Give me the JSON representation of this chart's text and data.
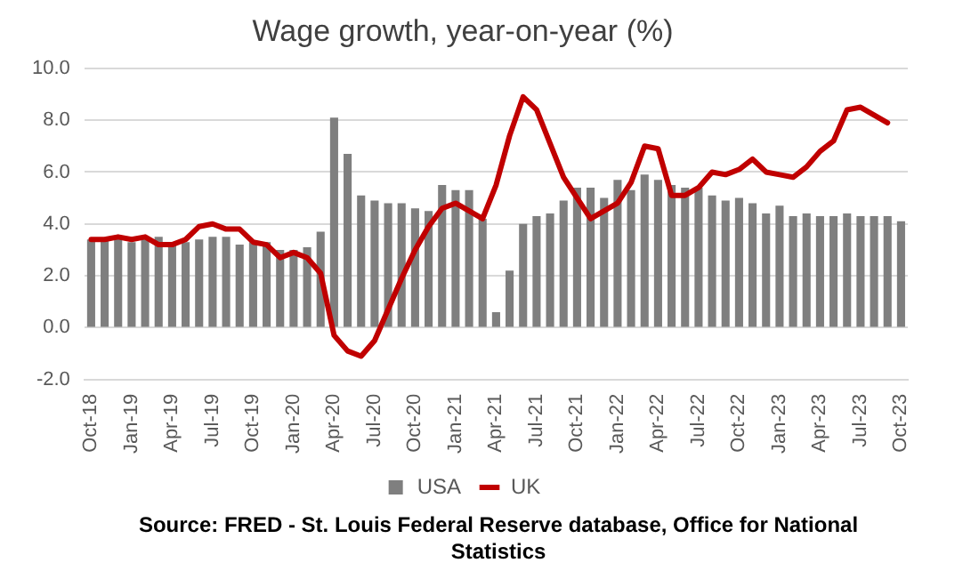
{
  "chart_data": {
    "type": "bar",
    "title": "Wage growth, year-on-year (%)",
    "categories": [
      "Oct-18",
      null,
      null,
      "Jan-19",
      null,
      null,
      "Apr-19",
      null,
      null,
      "Jul-19",
      null,
      null,
      "Oct-19",
      null,
      null,
      "Jan-20",
      null,
      null,
      "Apr-20",
      null,
      null,
      "Jul-20",
      null,
      null,
      "Oct-20",
      null,
      null,
      "Jan-21",
      null,
      null,
      "Apr-21",
      null,
      null,
      "Jul-21",
      null,
      null,
      "Oct-21",
      null,
      null,
      "Jan-22",
      null,
      null,
      "Apr-22",
      null,
      null,
      "Jul-22",
      null,
      null,
      "Oct-22",
      null,
      null,
      "Jan-23",
      null,
      null,
      "Apr-23",
      null,
      null,
      "Jul-23",
      null,
      null,
      "Oct-23"
    ],
    "series": [
      {
        "name": "USA",
        "color": "#7f7f7f",
        "values": [
          3.4,
          3.4,
          3.5,
          3.3,
          3.5,
          3.5,
          3.2,
          3.3,
          3.4,
          3.5,
          3.5,
          3.2,
          3.3,
          3.3,
          3.0,
          3.0,
          3.1,
          3.7,
          8.1,
          6.7,
          5.1,
          4.9,
          4.8,
          4.8,
          4.6,
          4.5,
          5.5,
          5.3,
          5.3,
          4.2,
          0.6,
          2.2,
          4.0,
          4.3,
          4.4,
          4.9,
          5.4,
          5.4,
          5.0,
          5.7,
          5.3,
          5.9,
          5.7,
          5.5,
          5.4,
          5.4,
          5.1,
          4.9,
          5.0,
          4.8,
          4.4,
          4.7,
          4.3,
          4.4,
          4.3,
          4.3,
          4.4,
          4.3,
          4.3,
          4.3,
          4.1
        ]
      },
      {
        "name": "UK",
        "type": "line",
        "color": "#c00000",
        "values": [
          3.4,
          3.4,
          3.5,
          3.4,
          3.5,
          3.2,
          3.2,
          3.4,
          3.9,
          4.0,
          3.8,
          3.8,
          3.3,
          3.2,
          2.7,
          2.9,
          2.7,
          2.1,
          -0.3,
          -0.9,
          -1.1,
          -0.5,
          0.7,
          1.9,
          3.0,
          3.9,
          4.6,
          4.8,
          4.5,
          4.2,
          5.5,
          7.4,
          8.9,
          8.4,
          7.1,
          5.8,
          5.0,
          4.2,
          4.5,
          4.8,
          5.6,
          7.0,
          6.9,
          5.1,
          5.1,
          5.4,
          6.0,
          5.9,
          6.1,
          6.5,
          6.0,
          5.9,
          5.8,
          6.2,
          6.8,
          7.2,
          8.4,
          8.5,
          8.2,
          7.9,
          null
        ]
      }
    ],
    "ylim": [
      -2,
      10
    ],
    "yticks": [
      {
        "value": -2,
        "label": "-2.0"
      },
      {
        "value": 0,
        "label": "0.0"
      },
      {
        "value": 2,
        "label": "2.0"
      },
      {
        "value": 4,
        "label": "4.0"
      },
      {
        "value": 6,
        "label": "6.0"
      },
      {
        "value": 8,
        "label": "8.0"
      },
      {
        "value": 10,
        "label": "10.0"
      }
    ],
    "grid": "y",
    "legend": "bottom",
    "marker": "none",
    "line_style": "solid",
    "annotations": [
      "Source: FRED - St. Louis Federal Reserve database, Office for National Statistics"
    ]
  }
}
